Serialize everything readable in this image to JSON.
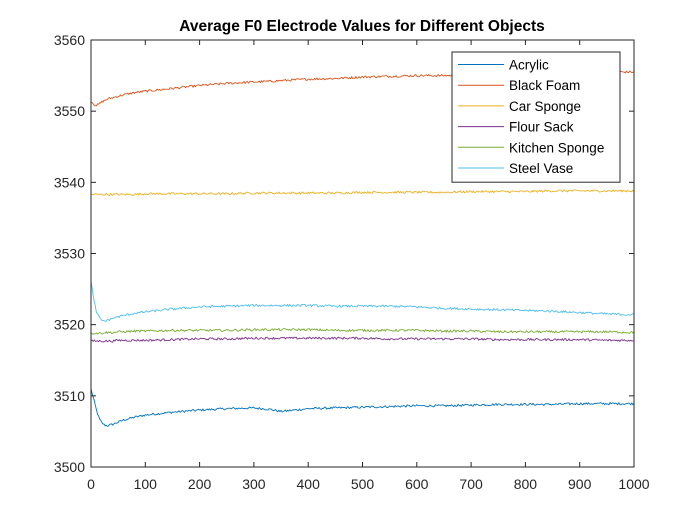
{
  "chart_data": {
    "type": "line",
    "title": "Average F0 Electrode Values for Different Objects",
    "xlabel": "",
    "ylabel": "",
    "xlim": [
      0,
      1000
    ],
    "ylim": [
      3500,
      3560
    ],
    "x_ticks": [
      "0",
      "100",
      "200",
      "300",
      "400",
      "500",
      "600",
      "700",
      "800",
      "900",
      "1000"
    ],
    "y_ticks": [
      "3500",
      "3510",
      "3520",
      "3530",
      "3540",
      "3550",
      "3560"
    ],
    "grid": false,
    "legend_position": "top-right",
    "x_sample": [
      0,
      5,
      10,
      15,
      20,
      25,
      30,
      40,
      50,
      60,
      80,
      100,
      150,
      200,
      250,
      300,
      330,
      350,
      400,
      450,
      500,
      550,
      600,
      650,
      700,
      750,
      800,
      850,
      900,
      950,
      1000
    ],
    "series": [
      {
        "name": "Acrylic",
        "color": "#0072BD",
        "values": [
          3511.0,
          3509.5,
          3508.0,
          3506.8,
          3506.2,
          3505.9,
          3505.8,
          3506.0,
          3506.3,
          3506.6,
          3507.0,
          3507.3,
          3507.7,
          3508.0,
          3508.2,
          3508.3,
          3508.1,
          3507.8,
          3508.2,
          3508.3,
          3508.4,
          3508.5,
          3508.6,
          3508.6,
          3508.7,
          3508.8,
          3508.8,
          3508.8,
          3508.9,
          3508.9,
          3508.9
        ]
      },
      {
        "name": "Black Foam",
        "color": "#D95319",
        "values": [
          3551.4,
          3551.0,
          3550.8,
          3551.0,
          3551.3,
          3551.5,
          3551.7,
          3551.9,
          3552.1,
          3552.3,
          3552.6,
          3552.8,
          3553.2,
          3553.6,
          3553.9,
          3554.1,
          3554.2,
          3554.3,
          3554.5,
          3554.6,
          3554.8,
          3554.9,
          3555.0,
          3555.0,
          3555.1,
          3555.2,
          3555.3,
          3555.3,
          3555.4,
          3555.5,
          3555.5
        ]
      },
      {
        "name": "Car Sponge",
        "color": "#EDB120",
        "values": [
          3538.3,
          3538.3,
          3538.3,
          3538.3,
          3538.3,
          3538.3,
          3538.3,
          3538.3,
          3538.3,
          3538.3,
          3538.3,
          3538.4,
          3538.4,
          3538.4,
          3538.4,
          3538.5,
          3538.5,
          3538.5,
          3538.5,
          3538.5,
          3538.6,
          3538.6,
          3538.6,
          3538.6,
          3538.7,
          3538.7,
          3538.7,
          3538.8,
          3538.8,
          3538.8,
          3538.8
        ]
      },
      {
        "name": "Flour Sack",
        "color": "#7E2F8E",
        "values": [
          3517.7,
          3517.7,
          3517.7,
          3517.7,
          3517.7,
          3517.7,
          3517.7,
          3517.7,
          3517.8,
          3517.8,
          3517.8,
          3517.8,
          3517.9,
          3518.0,
          3518.0,
          3518.1,
          3518.1,
          3518.1,
          3518.1,
          3518.1,
          3518.1,
          3518.0,
          3518.0,
          3518.0,
          3518.0,
          3517.9,
          3517.9,
          3517.9,
          3517.9,
          3517.8,
          3517.8
        ]
      },
      {
        "name": "Kitchen Sponge",
        "color": "#77AC30",
        "values": [
          3518.8,
          3518.8,
          3518.8,
          3518.8,
          3518.8,
          3518.9,
          3518.9,
          3518.9,
          3519.0,
          3519.0,
          3519.1,
          3519.1,
          3519.2,
          3519.2,
          3519.2,
          3519.3,
          3519.3,
          3519.3,
          3519.3,
          3519.2,
          3519.2,
          3519.2,
          3519.2,
          3519.1,
          3519.1,
          3519.0,
          3519.0,
          3519.0,
          3519.0,
          3519.0,
          3518.9
        ]
      },
      {
        "name": "Steel Vase",
        "color": "#4DBEEE",
        "values": [
          3526.2,
          3523.5,
          3521.8,
          3521.0,
          3520.6,
          3520.5,
          3520.6,
          3520.9,
          3521.1,
          3521.3,
          3521.6,
          3521.8,
          3522.2,
          3522.5,
          3522.6,
          3522.7,
          3522.7,
          3522.7,
          3522.7,
          3522.6,
          3522.6,
          3522.6,
          3522.5,
          3522.3,
          3522.2,
          3522.1,
          3522.0,
          3521.9,
          3521.7,
          3521.5,
          3521.4
        ]
      }
    ]
  }
}
